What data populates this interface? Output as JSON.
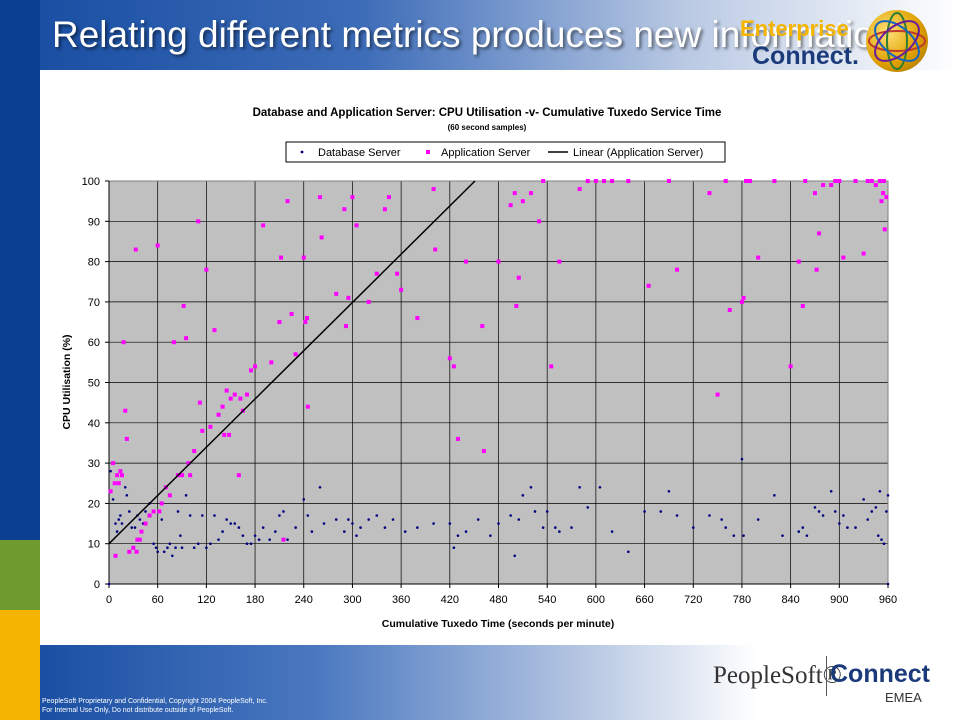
{
  "slide": {
    "title": "Relating different metrics produces new information",
    "logo_top": {
      "brand": "Enterprise",
      "product": "Connect."
    },
    "footer": {
      "line1": "PeopleSoft  Proprietary  and  Confidential,  Copyright 2004  PeopleSoft,  Inc.",
      "line2": "For Internal  Use Only, Do not distribute  outside  of PeopleSoft."
    },
    "brand_bottom": {
      "company": "PeopleSoft®",
      "product": "Connect",
      "region": "EMEA"
    },
    "colors": {
      "stripe_blue": "#0b3f8f",
      "stripe_green": "#6f9a2e",
      "stripe_yellow": "#f4b400",
      "plot_background": "#c0c0c0",
      "database_series": "#000080",
      "application_series": "#ff00ff",
      "trendline": "#000000"
    }
  },
  "chart_data": {
    "type": "scatter",
    "title": "Database and Application Server: CPU Utilisation -v- Cumulative Tuxedo Service Time",
    "subtitle": "(60 second samples)",
    "xlabel": "Cumulative Tuxedo Time (seconds per minute)",
    "ylabel": "CPU Utilisation (%)",
    "xlim": [
      0,
      960
    ],
    "ylim": [
      0,
      100
    ],
    "x_ticks": [
      0,
      60,
      120,
      180,
      240,
      300,
      360,
      420,
      480,
      540,
      600,
      660,
      720,
      780,
      840,
      900,
      960
    ],
    "y_ticks": [
      0,
      10,
      20,
      30,
      40,
      50,
      60,
      70,
      80,
      90,
      100
    ],
    "grid": true,
    "legend_position": "top",
    "series": [
      {
        "name": "Database Server",
        "marker": "dot",
        "color": "#000080",
        "points": [
          [
            0,
            0
          ],
          [
            2,
            28
          ],
          [
            5,
            21
          ],
          [
            8,
            15
          ],
          [
            10,
            13
          ],
          [
            12,
            16
          ],
          [
            14,
            17
          ],
          [
            16,
            15
          ],
          [
            20,
            24
          ],
          [
            22,
            22
          ],
          [
            25,
            18
          ],
          [
            28,
            14
          ],
          [
            32,
            14
          ],
          [
            35,
            17
          ],
          [
            38,
            16
          ],
          [
            42,
            15
          ],
          [
            45,
            18
          ],
          [
            50,
            20
          ],
          [
            55,
            10
          ],
          [
            58,
            9
          ],
          [
            60,
            8
          ],
          [
            65,
            16
          ],
          [
            68,
            8
          ],
          [
            72,
            9
          ],
          [
            75,
            10
          ],
          [
            78,
            7
          ],
          [
            82,
            9
          ],
          [
            85,
            18
          ],
          [
            88,
            12
          ],
          [
            90,
            9
          ],
          [
            95,
            22
          ],
          [
            100,
            17
          ],
          [
            105,
            9
          ],
          [
            110,
            10
          ],
          [
            115,
            17
          ],
          [
            120,
            9
          ],
          [
            125,
            10
          ],
          [
            130,
            17
          ],
          [
            135,
            11
          ],
          [
            140,
            13
          ],
          [
            145,
            16
          ],
          [
            150,
            15
          ],
          [
            155,
            15
          ],
          [
            160,
            14
          ],
          [
            165,
            12
          ],
          [
            170,
            10
          ],
          [
            175,
            10
          ],
          [
            180,
            12
          ],
          [
            185,
            11
          ],
          [
            190,
            14
          ],
          [
            198,
            11
          ],
          [
            205,
            13
          ],
          [
            210,
            17
          ],
          [
            215,
            18
          ],
          [
            220,
            11
          ],
          [
            230,
            14
          ],
          [
            240,
            21
          ],
          [
            245,
            17
          ],
          [
            250,
            13
          ],
          [
            260,
            24
          ],
          [
            265,
            15
          ],
          [
            280,
            16
          ],
          [
            290,
            13
          ],
          [
            295,
            16
          ],
          [
            300,
            15
          ],
          [
            305,
            12
          ],
          [
            310,
            14
          ],
          [
            320,
            16
          ],
          [
            330,
            17
          ],
          [
            340,
            14
          ],
          [
            350,
            16
          ],
          [
            365,
            13
          ],
          [
            380,
            14
          ],
          [
            400,
            15
          ],
          [
            420,
            15
          ],
          [
            425,
            9
          ],
          [
            430,
            12
          ],
          [
            440,
            13
          ],
          [
            455,
            16
          ],
          [
            470,
            12
          ],
          [
            480,
            15
          ],
          [
            495,
            17
          ],
          [
            500,
            7
          ],
          [
            505,
            16
          ],
          [
            510,
            22
          ],
          [
            520,
            24
          ],
          [
            525,
            18
          ],
          [
            535,
            14
          ],
          [
            540,
            18
          ],
          [
            550,
            14
          ],
          [
            555,
            13
          ],
          [
            570,
            14
          ],
          [
            580,
            24
          ],
          [
            590,
            19
          ],
          [
            605,
            24
          ],
          [
            620,
            13
          ],
          [
            640,
            8
          ],
          [
            660,
            18
          ],
          [
            680,
            18
          ],
          [
            690,
            23
          ],
          [
            700,
            17
          ],
          [
            720,
            14
          ],
          [
            740,
            17
          ],
          [
            755,
            16
          ],
          [
            760,
            14
          ],
          [
            770,
            12
          ],
          [
            780,
            31
          ],
          [
            782,
            12
          ],
          [
            800,
            16
          ],
          [
            820,
            22
          ],
          [
            830,
            12
          ],
          [
            850,
            13
          ],
          [
            855,
            14
          ],
          [
            860,
            12
          ],
          [
            870,
            19
          ],
          [
            875,
            18
          ],
          [
            880,
            17
          ],
          [
            890,
            23
          ],
          [
            895,
            18
          ],
          [
            900,
            15
          ],
          [
            905,
            17
          ],
          [
            910,
            14
          ],
          [
            920,
            14
          ],
          [
            930,
            21
          ],
          [
            935,
            16
          ],
          [
            940,
            18
          ],
          [
            945,
            19
          ],
          [
            948,
            12
          ],
          [
            950,
            23
          ],
          [
            952,
            11
          ],
          [
            955,
            10
          ],
          [
            958,
            18
          ],
          [
            960,
            22
          ],
          [
            960,
            0
          ]
        ]
      },
      {
        "name": "Application Server",
        "marker": "square",
        "color": "#ff00ff",
        "points": [
          [
            2,
            23
          ],
          [
            5,
            30
          ],
          [
            7,
            25
          ],
          [
            8,
            7
          ],
          [
            10,
            27
          ],
          [
            12,
            25
          ],
          [
            14,
            28
          ],
          [
            16,
            27
          ],
          [
            18,
            60
          ],
          [
            20,
            43
          ],
          [
            22,
            36
          ],
          [
            25,
            8
          ],
          [
            30,
            9
          ],
          [
            33,
            83
          ],
          [
            34,
            8
          ],
          [
            35,
            11
          ],
          [
            38,
            11
          ],
          [
            40,
            13
          ],
          [
            45,
            15
          ],
          [
            50,
            17
          ],
          [
            55,
            18
          ],
          [
            60,
            84
          ],
          [
            62,
            18
          ],
          [
            65,
            20
          ],
          [
            70,
            24
          ],
          [
            75,
            22
          ],
          [
            80,
            60
          ],
          [
            85,
            27
          ],
          [
            90,
            27
          ],
          [
            92,
            69
          ],
          [
            95,
            61
          ],
          [
            98,
            30
          ],
          [
            100,
            27
          ],
          [
            105,
            33
          ],
          [
            110,
            90
          ],
          [
            112,
            45
          ],
          [
            115,
            38
          ],
          [
            120,
            78
          ],
          [
            125,
            39
          ],
          [
            130,
            63
          ],
          [
            135,
            42
          ],
          [
            140,
            44
          ],
          [
            142,
            37
          ],
          [
            145,
            48
          ],
          [
            148,
            37
          ],
          [
            150,
            46
          ],
          [
            155,
            47
          ],
          [
            160,
            27
          ],
          [
            162,
            46
          ],
          [
            165,
            43
          ],
          [
            170,
            47
          ],
          [
            175,
            53
          ],
          [
            180,
            54
          ],
          [
            190,
            89
          ],
          [
            200,
            55
          ],
          [
            210,
            65
          ],
          [
            212,
            81
          ],
          [
            215,
            11
          ],
          [
            220,
            95
          ],
          [
            225,
            67
          ],
          [
            230,
            57
          ],
          [
            240,
            81
          ],
          [
            242,
            65
          ],
          [
            244,
            66
          ],
          [
            245,
            44
          ],
          [
            260,
            96
          ],
          [
            262,
            86
          ],
          [
            280,
            72
          ],
          [
            290,
            93
          ],
          [
            292,
            64
          ],
          [
            295,
            71
          ],
          [
            300,
            96
          ],
          [
            305,
            89
          ],
          [
            320,
            70
          ],
          [
            330,
            77
          ],
          [
            340,
            93
          ],
          [
            345,
            96
          ],
          [
            355,
            77
          ],
          [
            360,
            73
          ],
          [
            380,
            66
          ],
          [
            400,
            98
          ],
          [
            402,
            83
          ],
          [
            420,
            56
          ],
          [
            425,
            54
          ],
          [
            430,
            36
          ],
          [
            440,
            80
          ],
          [
            460,
            64
          ],
          [
            462,
            33
          ],
          [
            480,
            80
          ],
          [
            495,
            94
          ],
          [
            500,
            97
          ],
          [
            502,
            69
          ],
          [
            505,
            76
          ],
          [
            510,
            95
          ],
          [
            520,
            97
          ],
          [
            530,
            90
          ],
          [
            535,
            100
          ],
          [
            545,
            54
          ],
          [
            555,
            80
          ],
          [
            580,
            98
          ],
          [
            590,
            100
          ],
          [
            600,
            100
          ],
          [
            610,
            100
          ],
          [
            620,
            100
          ],
          [
            640,
            100
          ],
          [
            665,
            74
          ],
          [
            690,
            100
          ],
          [
            700,
            78
          ],
          [
            740,
            97
          ],
          [
            750,
            47
          ],
          [
            760,
            100
          ],
          [
            765,
            68
          ],
          [
            780,
            70
          ],
          [
            782,
            71
          ],
          [
            785,
            100
          ],
          [
            790,
            100
          ],
          [
            800,
            81
          ],
          [
            820,
            100
          ],
          [
            840,
            54
          ],
          [
            850,
            80
          ],
          [
            855,
            69
          ],
          [
            858,
            100
          ],
          [
            870,
            97
          ],
          [
            872,
            78
          ],
          [
            875,
            87
          ],
          [
            880,
            99
          ],
          [
            890,
            99
          ],
          [
            895,
            100
          ],
          [
            900,
            100
          ],
          [
            905,
            81
          ],
          [
            920,
            100
          ],
          [
            930,
            82
          ],
          [
            935,
            100
          ],
          [
            940,
            100
          ],
          [
            945,
            99
          ],
          [
            950,
            100
          ],
          [
            952,
            95
          ],
          [
            954,
            97
          ],
          [
            955,
            100
          ],
          [
            956,
            88
          ],
          [
            958,
            96
          ]
        ]
      }
    ],
    "trendline": {
      "name": "Linear (Application Server)",
      "color": "#000000",
      "x": [
        0,
        451
      ],
      "y": [
        10,
        100
      ]
    }
  }
}
